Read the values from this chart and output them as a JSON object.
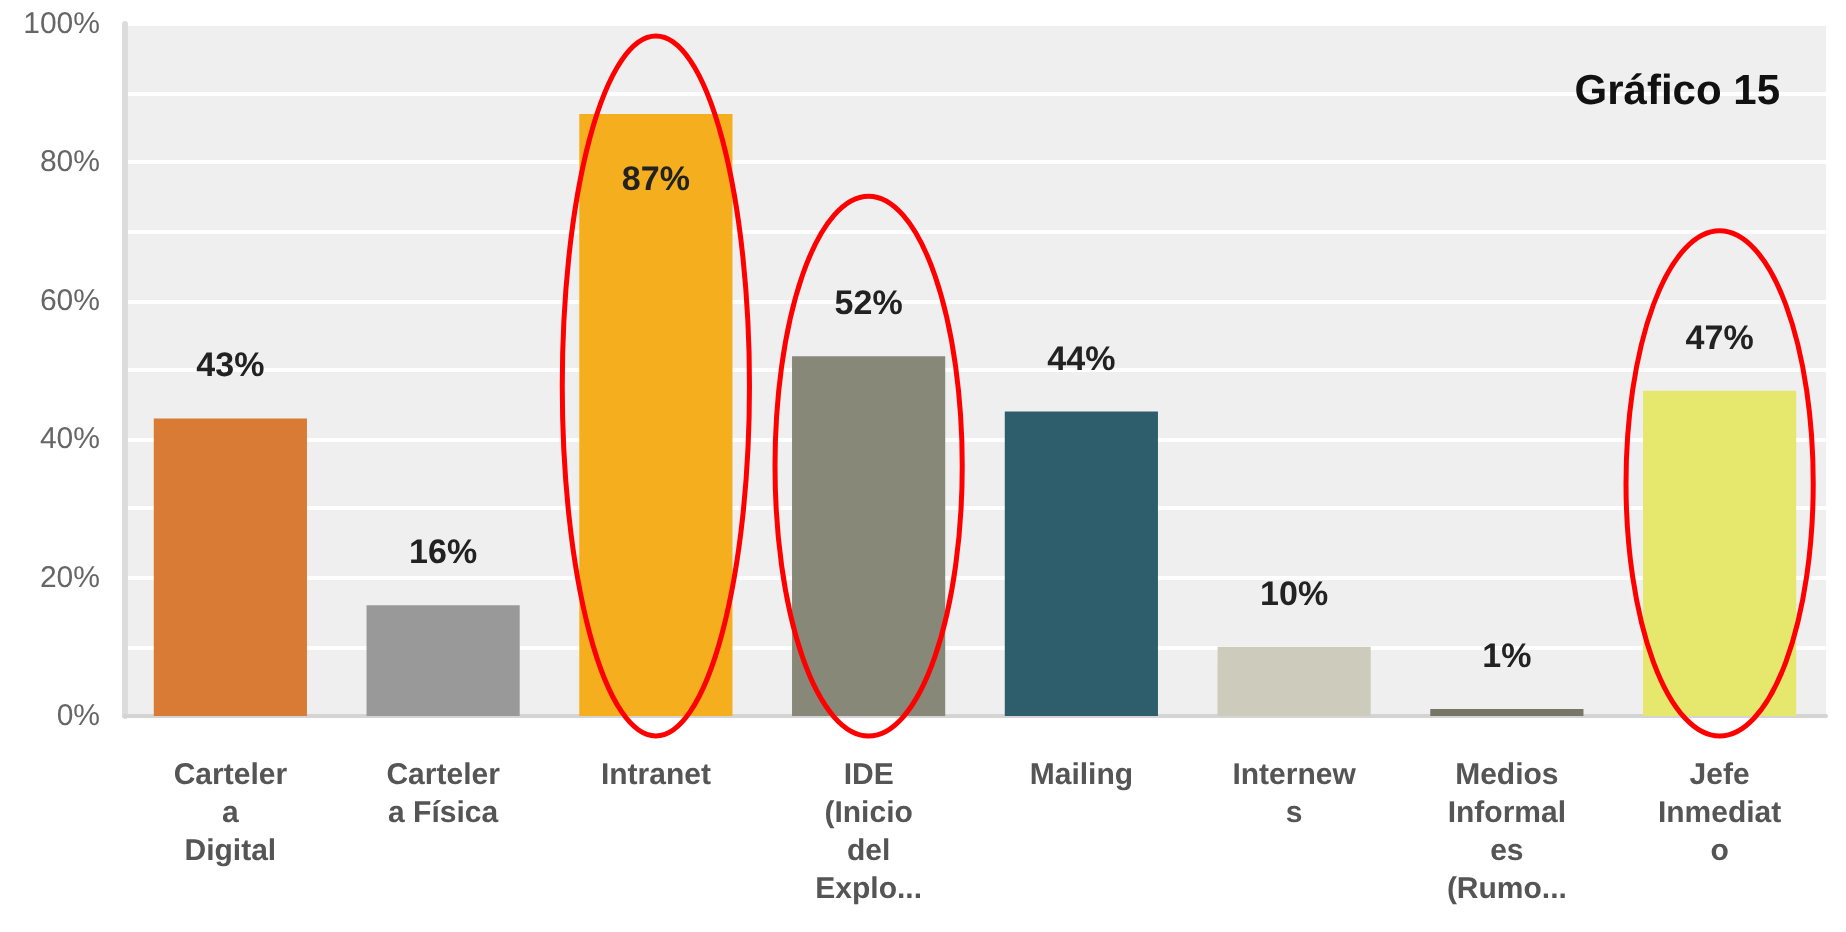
{
  "chart_data": {
    "type": "bar",
    "title": "Gráfico 15",
    "categories": [
      "Carteler\na\nDigital",
      "Carteler\na Física",
      "Intranet",
      "IDE\n(Inicio\ndel\nExplo...",
      "Mailing",
      "Internew\ns",
      "Medios\nInformal\nes\n(Rumo...",
      "Jefe\nInmediat\no"
    ],
    "values": [
      43,
      16,
      87,
      52,
      44,
      10,
      1,
      47
    ],
    "colors": [
      "#d97b35",
      "#999999",
      "#f5ae1e",
      "#878878",
      "#2e5e6b",
      "#cccbbc",
      "#777768",
      "#e6e86e"
    ],
    "value_labels": [
      "43%",
      "16%",
      "87%",
      "52%",
      "44%",
      "10%",
      "1%",
      "47%"
    ],
    "ylim": [
      0,
      100
    ],
    "yticks": [
      {
        "value": 0,
        "label": "0%"
      },
      {
        "value": 10,
        "label": null
      },
      {
        "value": 20,
        "label": "20%"
      },
      {
        "value": 30,
        "label": null
      },
      {
        "value": 40,
        "label": "40%"
      },
      {
        "value": 50,
        "label": null
      },
      {
        "value": 60,
        "label": "60%"
      },
      {
        "value": 70,
        "label": null
      },
      {
        "value": 80,
        "label": "80%"
      },
      {
        "value": 90,
        "label": null
      },
      {
        "value": 100,
        "label": "100%"
      }
    ],
    "grid": "y"
  }
}
